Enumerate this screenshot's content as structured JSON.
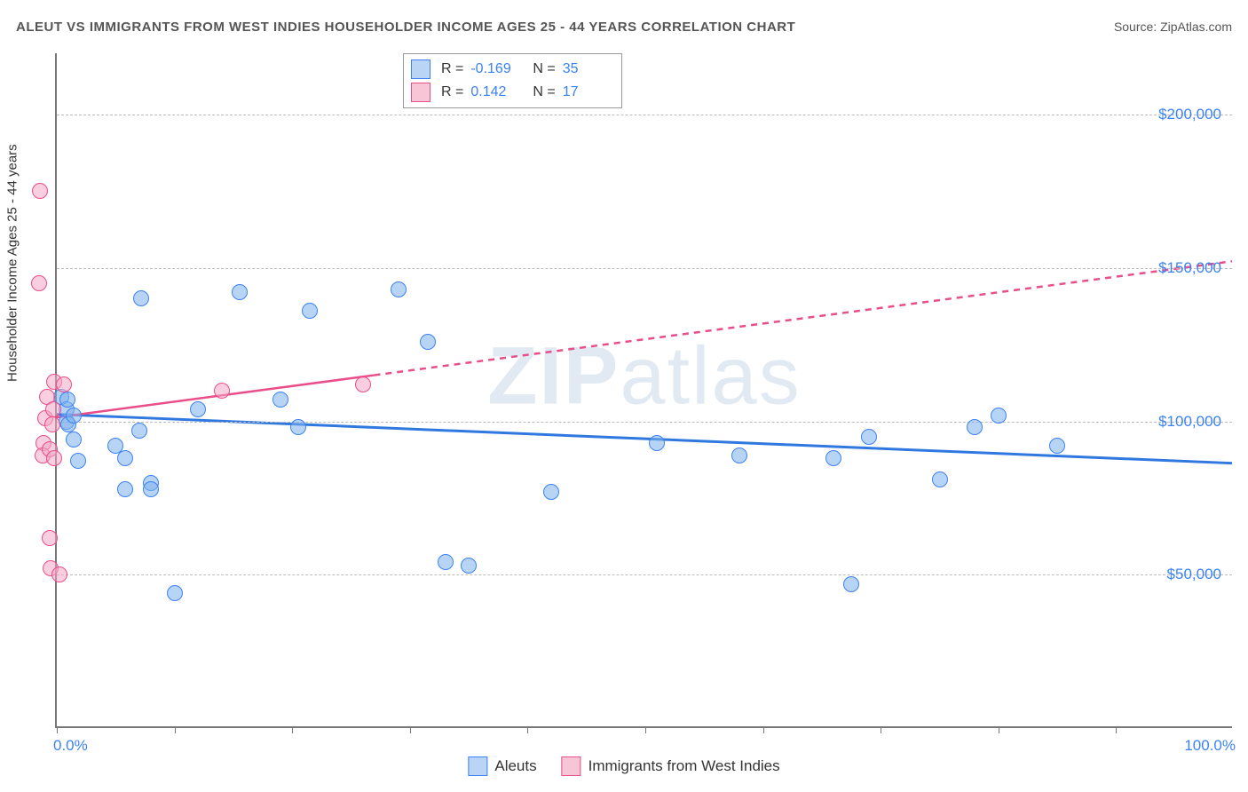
{
  "title": "ALEUT VS IMMIGRANTS FROM WEST INDIES HOUSEHOLDER INCOME AGES 25 - 44 YEARS CORRELATION CHART",
  "source_label": "Source: ",
  "source_value": "ZipAtlas.com",
  "y_axis_label": "Householder Income Ages 25 - 44 years",
  "watermark_prefix": "ZIP",
  "watermark_suffix": "atlas",
  "x_axis": {
    "min": 0.0,
    "max": 100.0,
    "min_label": "0.0%",
    "max_label": "100.0%",
    "ticks_pct": [
      0,
      10,
      20,
      30,
      40,
      50,
      60,
      70,
      80,
      90
    ]
  },
  "y_axis": {
    "min": 0,
    "max": 220000,
    "grid": [
      {
        "value": 50000,
        "label": "$50,000"
      },
      {
        "value": 100000,
        "label": "$100,000"
      },
      {
        "value": 150000,
        "label": "$150,000"
      },
      {
        "value": 200000,
        "label": "$200,000"
      }
    ]
  },
  "stats_box": {
    "rows": [
      {
        "swatch_fill": "#b9d4f4",
        "swatch_border": "#3b82f6",
        "r_label": "R =",
        "r_value": "-0.169",
        "n_label": "N =",
        "n_value": "35"
      },
      {
        "swatch_fill": "#f6c6d6",
        "swatch_border": "#e94d8a",
        "r_label": "R =",
        "r_value": "0.142",
        "n_label": "N =",
        "n_value": "17"
      }
    ]
  },
  "legend": {
    "items": [
      {
        "swatch_fill": "#b9d4f4",
        "swatch_border": "#3b82f6",
        "label": "Aleuts"
      },
      {
        "swatch_fill": "#f6c6d6",
        "swatch_border": "#e94d8a",
        "label": "Immigrants from West Indies"
      }
    ]
  },
  "series": [
    {
      "name": "aleuts",
      "marker": {
        "size": 18,
        "fill": "rgba(125,177,235,0.55)",
        "stroke": "#3b82f6",
        "stroke_width": 1.5
      },
      "trend": {
        "color": "#2f78e0",
        "width": 3,
        "dash_solid_until_x": 100.0,
        "y_at_xmin": 102000,
        "y_at_xmax": 86000
      },
      "points": [
        {
          "x": 0.4,
          "y": 108000
        },
        {
          "x": 0.8,
          "y": 100000
        },
        {
          "x": 0.8,
          "y": 104000
        },
        {
          "x": 1.0,
          "y": 99000
        },
        {
          "x": 1.4,
          "y": 94000
        },
        {
          "x": 1.8,
          "y": 87000
        },
        {
          "x": 1.4,
          "y": 102000
        },
        {
          "x": 0.9,
          "y": 107000
        },
        {
          "x": 5.0,
          "y": 92000
        },
        {
          "x": 5.8,
          "y": 88000
        },
        {
          "x": 7.2,
          "y": 140000
        },
        {
          "x": 5.8,
          "y": 78000
        },
        {
          "x": 8.0,
          "y": 80000
        },
        {
          "x": 7.0,
          "y": 97000
        },
        {
          "x": 8.0,
          "y": 78000
        },
        {
          "x": 10.0,
          "y": 44000
        },
        {
          "x": 12.0,
          "y": 104000
        },
        {
          "x": 15.5,
          "y": 142000
        },
        {
          "x": 19.0,
          "y": 107000
        },
        {
          "x": 20.5,
          "y": 98000
        },
        {
          "x": 21.5,
          "y": 136000
        },
        {
          "x": 29.0,
          "y": 143000
        },
        {
          "x": 31.5,
          "y": 126000
        },
        {
          "x": 33.0,
          "y": 54000
        },
        {
          "x": 35.0,
          "y": 53000
        },
        {
          "x": 42.0,
          "y": 77000
        },
        {
          "x": 51.0,
          "y": 93000
        },
        {
          "x": 58.0,
          "y": 89000
        },
        {
          "x": 66.0,
          "y": 88000
        },
        {
          "x": 67.5,
          "y": 47000
        },
        {
          "x": 69.0,
          "y": 95000
        },
        {
          "x": 75.0,
          "y": 81000
        },
        {
          "x": 78.0,
          "y": 98000
        },
        {
          "x": 80.0,
          "y": 102000
        },
        {
          "x": 85.0,
          "y": 92000
        }
      ]
    },
    {
      "name": "west-indies",
      "marker": {
        "size": 18,
        "fill": "rgba(244,168,198,0.55)",
        "stroke": "#e94d8a",
        "stroke_width": 1.5
      },
      "trend": {
        "color": "#e94d8a",
        "width": 2.5,
        "dash_solid_until_x": 27.0,
        "y_at_xmin": 101000,
        "y_at_xmax": 152000
      },
      "points": [
        {
          "x": -1.4,
          "y": 175000
        },
        {
          "x": -1.5,
          "y": 145000
        },
        {
          "x": -0.2,
          "y": 113000
        },
        {
          "x": -0.8,
          "y": 108000
        },
        {
          "x": -1.0,
          "y": 101000
        },
        {
          "x": -0.4,
          "y": 99000
        },
        {
          "x": -0.3,
          "y": 104000
        },
        {
          "x": 0.6,
          "y": 112000
        },
        {
          "x": -1.1,
          "y": 93000
        },
        {
          "x": -1.2,
          "y": 89000
        },
        {
          "x": -0.6,
          "y": 91000
        },
        {
          "x": -0.2,
          "y": 88000
        },
        {
          "x": -0.6,
          "y": 62000
        },
        {
          "x": -0.5,
          "y": 52000
        },
        {
          "x": 0.2,
          "y": 50000
        },
        {
          "x": 14.0,
          "y": 110000
        },
        {
          "x": 26.0,
          "y": 112000
        }
      ]
    }
  ]
}
